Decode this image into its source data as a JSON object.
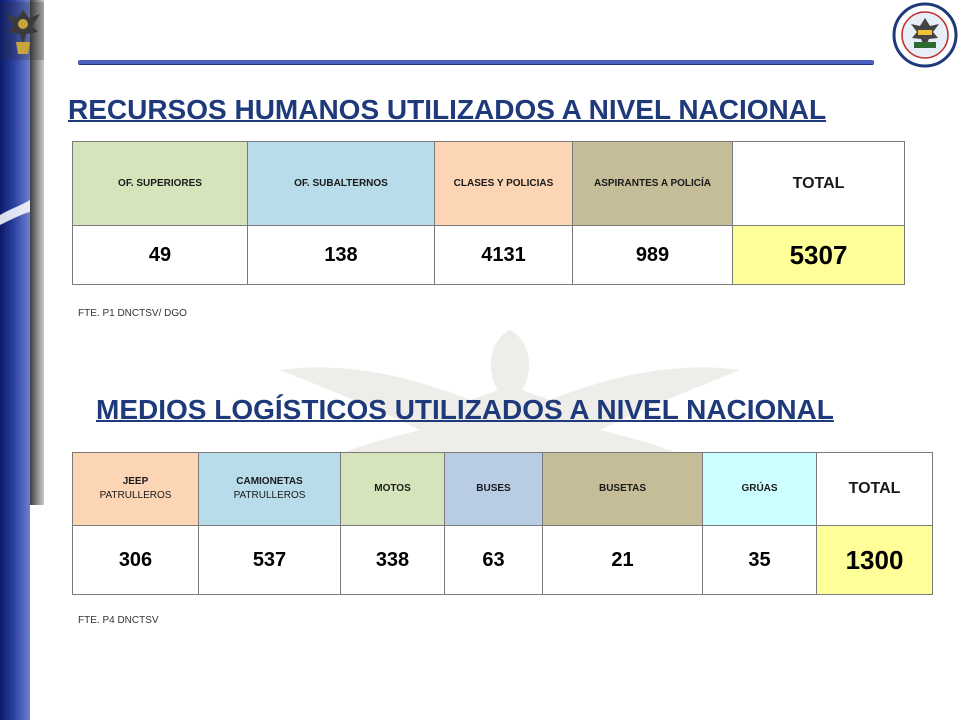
{
  "colors": {
    "title": "#1f3a7a",
    "total_highlight": "#ffff99",
    "green": "#d6e4bc",
    "blue": "#b8dcea",
    "peach": "#fcd5b5",
    "tan": "#c4bd97",
    "light_blue": "#b8cce4",
    "cyan": "#ccffff"
  },
  "logos": {
    "left": "police-eagle-emblem",
    "right": "ecuador-national-transit-directorate-seal",
    "watermark": "eagle-watermark"
  },
  "section1": {
    "title": "RECURSOS HUMANOS UTILIZADOS A NIVEL NACIONAL",
    "headers": [
      "OF. SUPERIORES",
      "OF. SUBALTERNOS",
      "CLASES Y POLICIAS",
      "ASPIRANTES A POLICÍA",
      "TOTAL"
    ],
    "values": [
      "49",
      "138",
      "4131",
      "989",
      "5307"
    ],
    "source": "FTE. P1 DNCTSV/ DGO"
  },
  "section2": {
    "title": "MEDIOS LOGÍSTICOS UTILIZADOS A NIVEL NACIONAL",
    "headers": [
      {
        "line1": "JEEP",
        "line2": "PATRULLEROS"
      },
      {
        "line1": "CAMIONETAS",
        "line2": "PATRULLEROS"
      },
      {
        "line1": "MOTOS"
      },
      {
        "line1": "BUSES"
      },
      {
        "line1": "BUSETAS"
      },
      {
        "line1": "GRÚAS"
      },
      {
        "line1": "TOTAL"
      }
    ],
    "values": [
      "306",
      "537",
      "338",
      "63",
      "21",
      "35",
      "1300"
    ],
    "source": "FTE. P4 DNCTSV"
  }
}
